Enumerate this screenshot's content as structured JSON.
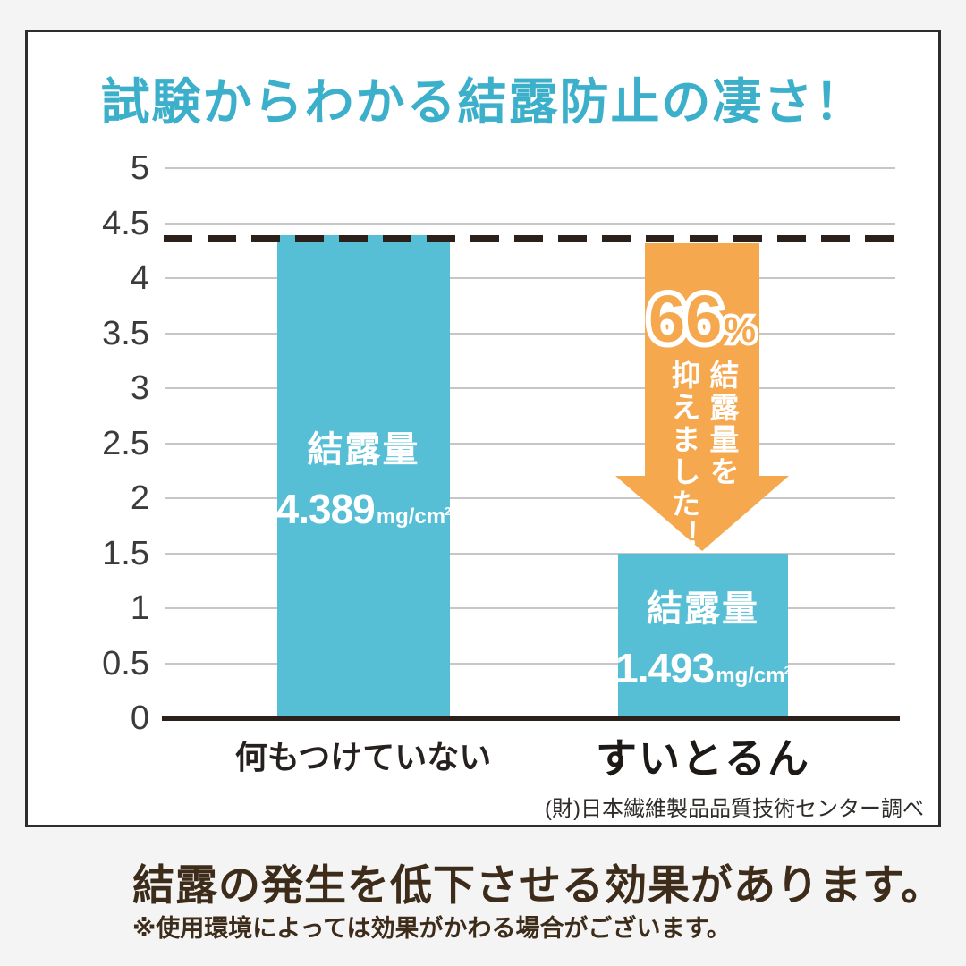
{
  "title": "試験からわかる結露防止の凄さ！",
  "colors": {
    "background": "#f4f4f4",
    "title": "#3cb0ca",
    "bar": "#56bfd6",
    "arrow": "#f6a84e",
    "dark": "#2c211a",
    "grid": "#c6c6c6",
    "brown": "#3e2c1a"
  },
  "chart_data": {
    "type": "bar",
    "title": "試験からわかる結露防止の凄さ！",
    "categories": [
      "何もつけていない",
      "すいとるん"
    ],
    "values": [
      4.389,
      1.493
    ],
    "ylim": [
      0,
      5
    ],
    "yticks": [
      "0",
      "0.5",
      "1",
      "1.5",
      "2",
      "2.5",
      "3",
      "3.5",
      "4",
      "4.5",
      "5"
    ],
    "grid": true,
    "legend": false,
    "reference_line": 4.389,
    "bars": [
      {
        "category": "何もつけていない",
        "label": "結露量",
        "value": 4.389,
        "value_text": "4.389",
        "unit": "mg/cm",
        "unit_sup": "2"
      },
      {
        "category": "すいとるん",
        "label": "結露量",
        "value": 1.493,
        "value_text": "1.493",
        "unit": "mg/cm",
        "unit_sup": "2"
      }
    ],
    "annotation": {
      "percent": "66",
      "percent_sign": "%",
      "lines": [
        "結露量を",
        "抑えました！"
      ]
    }
  },
  "source": "(財)日本繊維製品品質技術センター調べ",
  "footer": {
    "heading": "結露の発生を低下させる効果があります。",
    "note": "※使用環境によっては効果がかわる場合がございます。"
  }
}
